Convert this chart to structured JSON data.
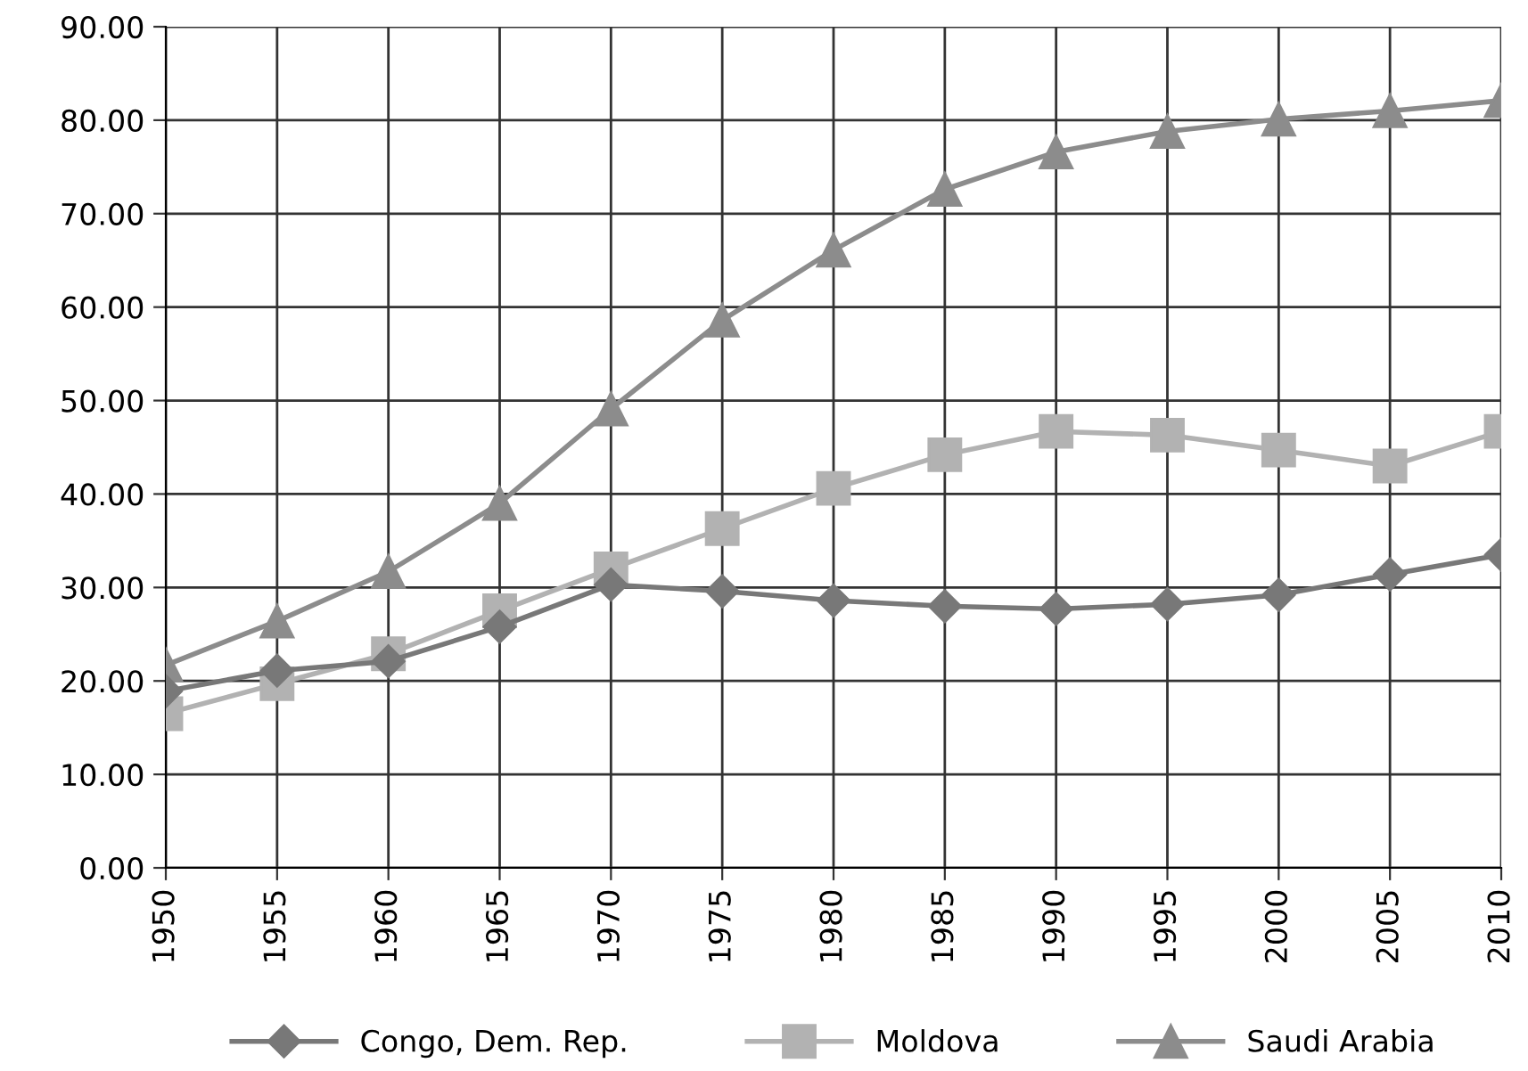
{
  "chart_data": {
    "type": "line",
    "categories": [
      "1950",
      "1955",
      "1960",
      "1965",
      "1970",
      "1975",
      "1980",
      "1985",
      "1990",
      "1995",
      "2000",
      "2005",
      "2010"
    ],
    "series": [
      {
        "name": "Congo, Dem. Rep.",
        "color": "#787878",
        "marker": "diamond",
        "values": [
          18.9,
          21.1,
          22.1,
          25.8,
          30.3,
          29.6,
          28.6,
          28.0,
          27.7,
          28.2,
          29.2,
          31.4,
          33.5
        ]
      },
      {
        "name": "Moldova",
        "color": "#b2b2b2",
        "marker": "square",
        "values": [
          16.5,
          19.7,
          22.9,
          27.5,
          32.0,
          36.3,
          40.6,
          44.2,
          46.7,
          46.3,
          44.7,
          43.0,
          46.7
        ]
      },
      {
        "name": "Saudi Arabia",
        "color": "#8c8c8c",
        "marker": "triangle",
        "values": [
          21.7,
          26.4,
          31.7,
          39.0,
          49.1,
          58.6,
          66.1,
          72.6,
          76.6,
          78.8,
          80.1,
          81.0,
          82.1
        ]
      }
    ],
    "ylim": [
      0,
      90
    ],
    "yticks": [
      {
        "value": 0,
        "label": "0.00"
      },
      {
        "value": 10,
        "label": "10.00"
      },
      {
        "value": 20,
        "label": "20.00"
      },
      {
        "value": 30,
        "label": "30.00"
      },
      {
        "value": 40,
        "label": "40.00"
      },
      {
        "value": 50,
        "label": "50.00"
      },
      {
        "value": 60,
        "label": "60.00"
      },
      {
        "value": 70,
        "label": "70.00"
      },
      {
        "value": 80,
        "label": "80.00"
      },
      {
        "value": 90,
        "label": "90.00"
      }
    ],
    "grid": true,
    "legend": "bottom",
    "line_style": "solid"
  }
}
